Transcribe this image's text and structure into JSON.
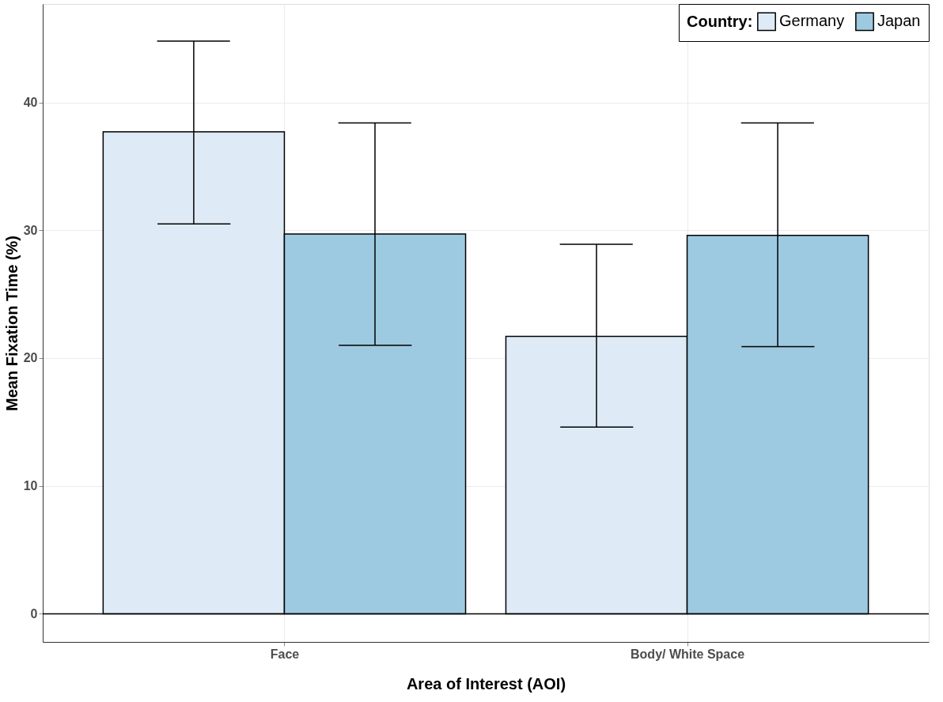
{
  "chart_data": {
    "type": "bar",
    "xlabel": "Area of Interest (AOI)",
    "ylabel": "Mean Fixation Time (%)",
    "legend_title": "Country:",
    "categories": [
      "Face",
      "Body/ White Space"
    ],
    "series": [
      {
        "name": "Germany",
        "color": "#deebf7",
        "values": [
          37.7,
          21.7
        ],
        "errors": [
          [
            30.5,
            44.8
          ],
          [
            14.6,
            28.9
          ]
        ]
      },
      {
        "name": "Japan",
        "color": "#9ecae1",
        "values": [
          29.7,
          29.6
        ],
        "errors": [
          [
            21.0,
            38.4
          ],
          [
            20.9,
            38.4
          ]
        ]
      }
    ],
    "ylim": [
      -2.2,
      47.7
    ],
    "yticks": [
      0,
      10,
      20,
      30,
      40
    ],
    "ref_lines": [
      {
        "axis": "y",
        "value": 0,
        "color": "#000000"
      }
    ],
    "grid": true,
    "legend": "top right"
  }
}
